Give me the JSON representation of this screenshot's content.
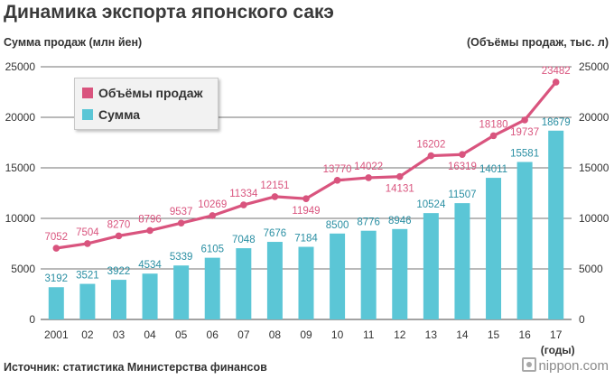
{
  "header": {
    "title": "Динамика экспорта японского сакэ",
    "left_axis_caption": "Сумма продаж (млн йен)",
    "right_axis_caption": "(Объёмы продаж, тыс. л)"
  },
  "footer": {
    "source": "Источник: статистика Министерства финансов",
    "brand": "nippon.com"
  },
  "colors": {
    "bars": "#5bc6d6",
    "line": "#d9547e",
    "axis_text": "#333333",
    "gridline": "#444444"
  },
  "chart_data": {
    "type": "bar+line",
    "title": "Динамика экспорта японского сакэ",
    "categories": [
      "2001",
      "02",
      "03",
      "04",
      "05",
      "06",
      "07",
      "08",
      "09",
      "10",
      "11",
      "12",
      "13",
      "14",
      "15",
      "16",
      "17"
    ],
    "x_unit_label": "(годы)",
    "series": [
      {
        "name": "Сумма",
        "kind": "bar",
        "axis": "left",
        "values": [
          3192,
          3521,
          3922,
          4534,
          5339,
          6105,
          7048,
          7676,
          7184,
          8500,
          8776,
          8946,
          10524,
          11507,
          14011,
          15581,
          18679
        ]
      },
      {
        "name": "Объёмы продаж",
        "kind": "line",
        "axis": "right",
        "values": [
          7052,
          7504,
          8270,
          8796,
          9537,
          10269,
          11334,
          12151,
          11949,
          13770,
          14022,
          14131,
          16202,
          16319,
          18180,
          19737,
          23482
        ]
      }
    ],
    "left_axis": {
      "label": "Сумма продаж (млн йен)",
      "ylim": [
        0,
        25000
      ],
      "ticks": [
        "0",
        "5000",
        "10000",
        "15000",
        "20000",
        "25000"
      ]
    },
    "right_axis": {
      "label": "(Объёмы продаж, тыс. л)",
      "ylim": [
        0,
        25000
      ],
      "ticks": [
        "0",
        "5000",
        "10000",
        "15000",
        "20000",
        "25000"
      ]
    },
    "legend": {
      "placement": "top-left",
      "entries": [
        "Объёмы продаж",
        "Сумма"
      ]
    },
    "grid": "horizontal"
  }
}
